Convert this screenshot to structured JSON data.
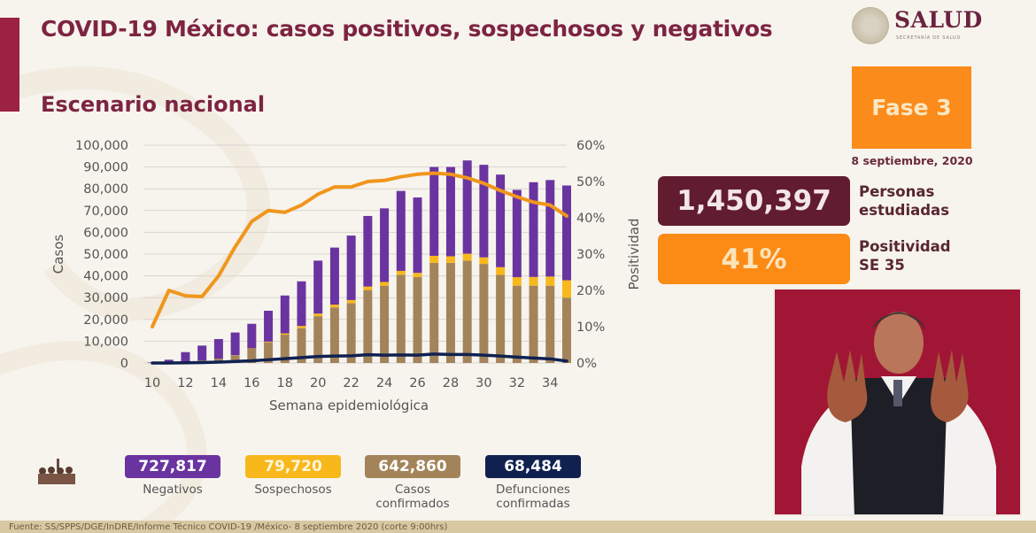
{
  "header": {
    "title": "COVID-19 México: casos positivos, sospechosos y negativos",
    "subtitle": "Escenario nacional"
  },
  "logo": {
    "word": "SALUD",
    "sub": "SECRETARÍA DE SALUD"
  },
  "fase": {
    "label": "Fase 3",
    "date": "8 septiembre, 2020"
  },
  "stats": [
    {
      "value": "1,450,397",
      "label_line1": "Personas",
      "label_line2": "estudiadas"
    },
    {
      "value": "41%",
      "label_line1": "Positividad",
      "label_line2": "SE 35"
    }
  ],
  "summary": [
    {
      "value": "727,817",
      "label_line1": "Negativos",
      "label_line2": "",
      "color": "#6a34a0"
    },
    {
      "value": "79,720",
      "label_line1": "Sospechosos",
      "label_line2": "",
      "color": "#f8b81c"
    },
    {
      "value": "642,860",
      "label_line1": "Casos",
      "label_line2": "confirmados",
      "color": "#a3845a"
    },
    {
      "value": "68,484",
      "label_line1": "Defunciones",
      "label_line2": "confirmadas",
      "color": "#102150"
    }
  ],
  "footer": {
    "text": "Fuente: SS/SPPS/DGE/InDRE/Informe Técnico COVID-19 /México- 8 septiembre 2020 (corte 9:00hrs)"
  },
  "colors": {
    "title": "#7d2441",
    "negativos": "#6a34a0",
    "sospechosos": "#f8b81c",
    "confirmados": "#a3845a",
    "defunciones": "#102150",
    "positividad": "#f0961c"
  },
  "chart_data": {
    "type": "bar",
    "stacked": true,
    "xlabel": "Semana epidemiológica",
    "ylabel": "Casos",
    "y2label": "Positividad",
    "ylim": [
      0,
      100000
    ],
    "y2lim": [
      0,
      60
    ],
    "yticks": [
      "0",
      "10,000",
      "20,000",
      "30,000",
      "40,000",
      "50,000",
      "60,000",
      "70,000",
      "80,000",
      "90,000",
      "100,000"
    ],
    "y2ticks": [
      "0%",
      "10%",
      "20%",
      "30%",
      "40%",
      "50%",
      "60%"
    ],
    "xticks": [
      "10",
      "12",
      "14",
      "16",
      "18",
      "20",
      "22",
      "24",
      "26",
      "28",
      "30",
      "32",
      "34"
    ],
    "grid": true,
    "x": [
      10,
      11,
      12,
      13,
      14,
      15,
      16,
      17,
      18,
      19,
      20,
      21,
      22,
      23,
      24,
      25,
      26,
      27,
      28,
      29,
      30,
      31,
      32,
      33,
      34,
      35
    ],
    "series": [
      {
        "name": "Confirmados",
        "axis": "left",
        "kind": "bar",
        "values": [
          100,
          300,
          600,
          1200,
          2000,
          3500,
          6500,
          9500,
          13000,
          16000,
          21500,
          25500,
          27500,
          33500,
          35500,
          40500,
          39500,
          46000,
          46000,
          47000,
          45500,
          40500,
          35500,
          35500,
          35500,
          30000
        ]
      },
      {
        "name": "Sospechosos",
        "axis": "left",
        "kind": "bar",
        "values": [
          0,
          0,
          0,
          0,
          0,
          100,
          200,
          300,
          600,
          1000,
          1200,
          1300,
          1400,
          1600,
          1700,
          1800,
          1900,
          3200,
          3000,
          3200,
          3000,
          3500,
          3900,
          4000,
          4200,
          8000
        ]
      },
      {
        "name": "Negativos",
        "axis": "left",
        "kind": "bar",
        "values": [
          200,
          1200,
          4400,
          6800,
          9000,
          10400,
          11300,
          14200,
          17400,
          20500,
          24300,
          26200,
          29600,
          32400,
          33800,
          36700,
          34600,
          40800,
          41000,
          42800,
          42500,
          42500,
          40100,
          43500,
          44300,
          43500
        ]
      },
      {
        "name": "Defunciones",
        "axis": "left",
        "kind": "line",
        "values": [
          0,
          0,
          100,
          200,
          400,
          700,
          1000,
          1500,
          2000,
          2500,
          3000,
          3200,
          3300,
          3800,
          3600,
          3700,
          3600,
          4100,
          3900,
          3900,
          3600,
          3200,
          2700,
          2300,
          1900,
          900
        ]
      },
      {
        "name": "Positividad",
        "axis": "right",
        "kind": "line",
        "values": [
          10,
          20,
          18.5,
          18.3,
          24,
          32,
          39,
          42,
          41.5,
          43.5,
          46.5,
          48.5,
          48.5,
          50,
          50.3,
          51.3,
          52,
          52.3,
          52,
          51,
          49.5,
          47.5,
          45.8,
          44.3,
          43.5,
          40.5
        ]
      }
    ]
  }
}
